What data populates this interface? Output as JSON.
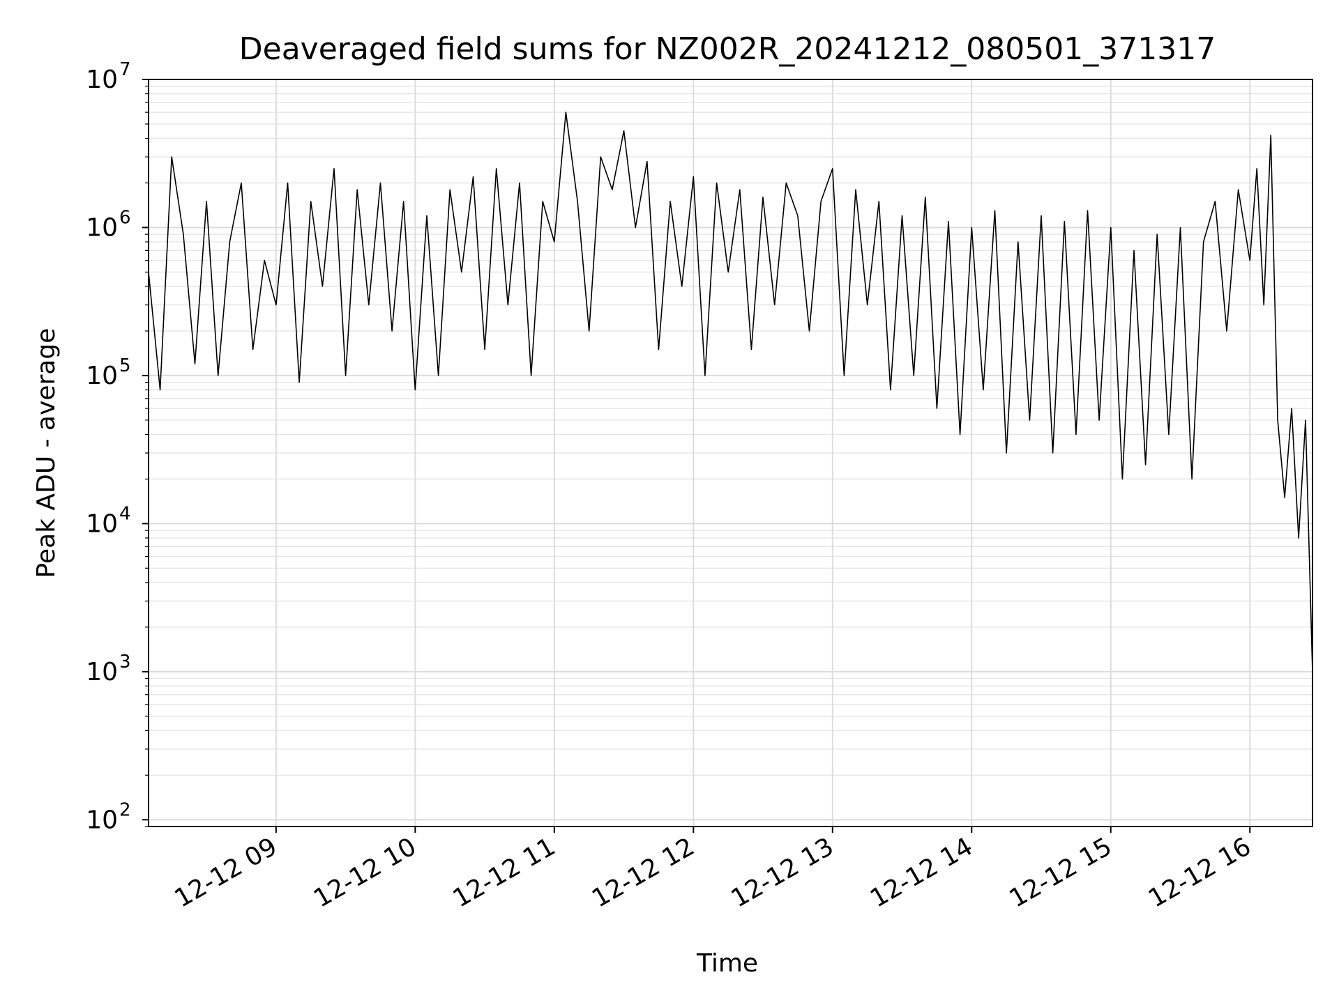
{
  "chart_data": {
    "type": "line",
    "title": "Deaveraged field sums for NZ002R_20241212_080501_371317",
    "xlabel": "Time",
    "ylabel": "Peak ADU - average",
    "yscale": "log",
    "ylim": [
      90,
      10000000
    ],
    "xlim": [
      "2024-12-12 08:05",
      "2024-12-12 16:27"
    ],
    "grid": true,
    "legend": "none",
    "line_color": "#000000",
    "x_ticks": [
      {
        "label": "12-12 09",
        "value": "2024-12-12 09:00"
      },
      {
        "label": "12-12 10",
        "value": "2024-12-12 10:00"
      },
      {
        "label": "12-12 11",
        "value": "2024-12-12 11:00"
      },
      {
        "label": "12-12 12",
        "value": "2024-12-12 12:00"
      },
      {
        "label": "12-12 13",
        "value": "2024-12-12 13:00"
      },
      {
        "label": "12-12 14",
        "value": "2024-12-12 14:00"
      },
      {
        "label": "12-12 15",
        "value": "2024-12-12 15:00"
      },
      {
        "label": "12-12 16",
        "value": "2024-12-12 16:00"
      }
    ],
    "y_ticks": [
      {
        "base": "10",
        "exp": "2",
        "value": 100
      },
      {
        "base": "10",
        "exp": "3",
        "value": 1000
      },
      {
        "base": "10",
        "exp": "4",
        "value": 10000
      },
      {
        "base": "10",
        "exp": "5",
        "value": 100000
      },
      {
        "base": "10",
        "exp": "6",
        "value": 1000000
      },
      {
        "base": "10",
        "exp": "7",
        "value": 10000000
      }
    ],
    "series": [
      {
        "x": [
          "2024-12-12 08:05",
          "2024-12-12 08:10",
          "2024-12-12 08:15",
          "2024-12-12 08:20",
          "2024-12-12 08:25",
          "2024-12-12 08:30",
          "2024-12-12 08:35",
          "2024-12-12 08:40",
          "2024-12-12 08:45",
          "2024-12-12 08:50",
          "2024-12-12 08:55",
          "2024-12-12 09:00",
          "2024-12-12 09:05",
          "2024-12-12 09:10",
          "2024-12-12 09:15",
          "2024-12-12 09:20",
          "2024-12-12 09:25",
          "2024-12-12 09:30",
          "2024-12-12 09:35",
          "2024-12-12 09:40",
          "2024-12-12 09:45",
          "2024-12-12 09:50",
          "2024-12-12 09:55",
          "2024-12-12 10:00",
          "2024-12-12 10:05",
          "2024-12-12 10:10",
          "2024-12-12 10:15",
          "2024-12-12 10:20",
          "2024-12-12 10:25",
          "2024-12-12 10:30",
          "2024-12-12 10:35",
          "2024-12-12 10:40",
          "2024-12-12 10:45",
          "2024-12-12 10:50",
          "2024-12-12 10:55",
          "2024-12-12 11:00",
          "2024-12-12 11:05",
          "2024-12-12 11:10",
          "2024-12-12 11:15",
          "2024-12-12 11:20",
          "2024-12-12 11:25",
          "2024-12-12 11:30",
          "2024-12-12 11:35",
          "2024-12-12 11:40",
          "2024-12-12 11:45",
          "2024-12-12 11:50",
          "2024-12-12 11:55",
          "2024-12-12 12:00",
          "2024-12-12 12:05",
          "2024-12-12 12:10",
          "2024-12-12 12:15",
          "2024-12-12 12:20",
          "2024-12-12 12:25",
          "2024-12-12 12:30",
          "2024-12-12 12:35",
          "2024-12-12 12:40",
          "2024-12-12 12:45",
          "2024-12-12 12:50",
          "2024-12-12 12:55",
          "2024-12-12 13:00",
          "2024-12-12 13:05",
          "2024-12-12 13:10",
          "2024-12-12 13:15",
          "2024-12-12 13:20",
          "2024-12-12 13:25",
          "2024-12-12 13:30",
          "2024-12-12 13:35",
          "2024-12-12 13:40",
          "2024-12-12 13:45",
          "2024-12-12 13:50",
          "2024-12-12 13:55",
          "2024-12-12 14:00",
          "2024-12-12 14:05",
          "2024-12-12 14:10",
          "2024-12-12 14:15",
          "2024-12-12 14:20",
          "2024-12-12 14:25",
          "2024-12-12 14:30",
          "2024-12-12 14:35",
          "2024-12-12 14:40",
          "2024-12-12 14:45",
          "2024-12-12 14:50",
          "2024-12-12 14:55",
          "2024-12-12 15:00",
          "2024-12-12 15:05",
          "2024-12-12 15:10",
          "2024-12-12 15:15",
          "2024-12-12 15:20",
          "2024-12-12 15:25",
          "2024-12-12 15:30",
          "2024-12-12 15:35",
          "2024-12-12 15:40",
          "2024-12-12 15:45",
          "2024-12-12 15:50",
          "2024-12-12 15:55",
          "2024-12-12 16:00",
          "2024-12-12 16:03",
          "2024-12-12 16:06",
          "2024-12-12 16:09",
          "2024-12-12 16:12",
          "2024-12-12 16:15",
          "2024-12-12 16:18",
          "2024-12-12 16:21",
          "2024-12-12 16:24",
          "2024-12-12 16:27"
        ],
        "y": [
          500000,
          80000,
          3000000,
          900000,
          120000,
          1500000,
          100000,
          800000,
          2000000,
          150000,
          600000,
          300000,
          2000000,
          90000,
          1500000,
          400000,
          2500000,
          100000,
          1800000,
          300000,
          2000000,
          200000,
          1500000,
          80000,
          1200000,
          100000,
          1800000,
          500000,
          2200000,
          150000,
          2500000,
          300000,
          2000000,
          100000,
          1500000,
          800000,
          6000000,
          1500000,
          200000,
          3000000,
          1800000,
          4500000,
          1000000,
          2800000,
          150000,
          1500000,
          400000,
          2200000,
          100000,
          2000000,
          500000,
          1800000,
          150000,
          1600000,
          300000,
          2000000,
          1200000,
          200000,
          1500000,
          2500000,
          100000,
          1800000,
          300000,
          1500000,
          80000,
          1200000,
          100000,
          1600000,
          60000,
          1100000,
          40000,
          1000000,
          80000,
          1300000,
          30000,
          800000,
          50000,
          1200000,
          30000,
          1100000,
          40000,
          1300000,
          50000,
          1000000,
          20000,
          700000,
          25000,
          900000,
          40000,
          1000000,
          20000,
          800000,
          1500000,
          200000,
          1800000,
          600000,
          2500000,
          300000,
          4200000,
          50000,
          15000,
          60000,
          8000,
          50000,
          1000
        ]
      }
    ]
  }
}
